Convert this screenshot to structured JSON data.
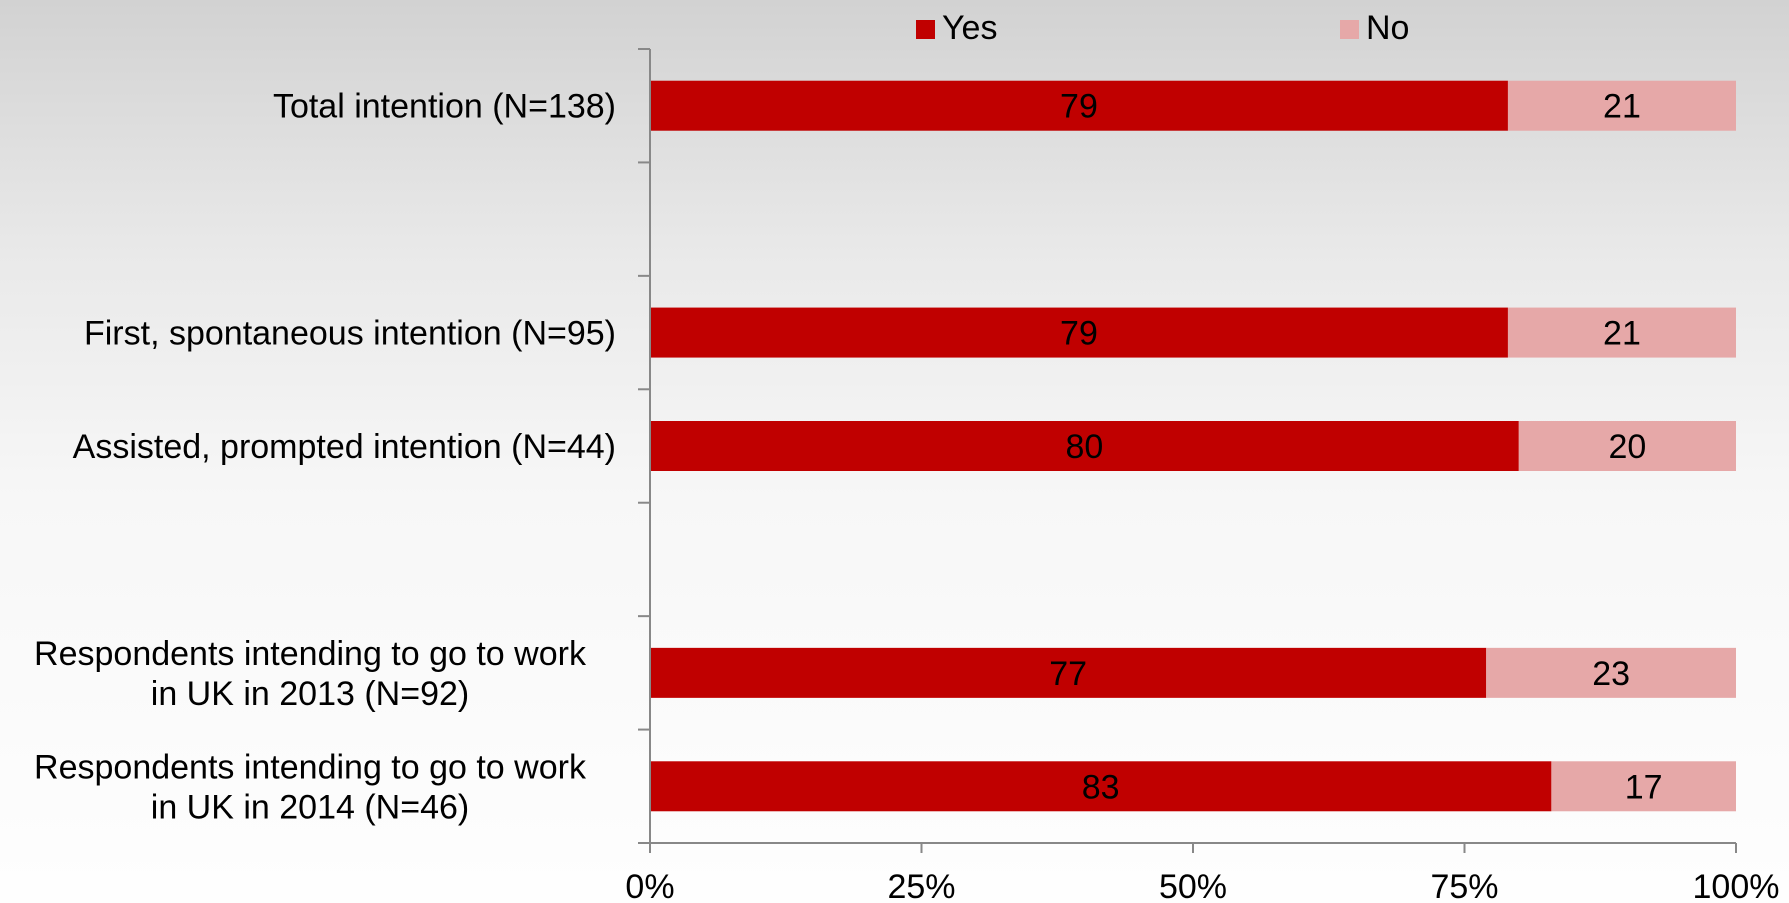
{
  "chart_data": {
    "type": "bar",
    "orientation": "horizontal",
    "stacked": true,
    "categories": [
      [
        "Total intention (N=138)"
      ],
      [],
      [
        "First, spontaneous intention (N=95)"
      ],
      [
        "Assisted, prompted intention (N=44)"
      ],
      [],
      [
        "Respondents intending to go to work",
        "in UK in 2013 (N=92)"
      ],
      [
        "Respondents intending to go to work",
        "in UK in 2014 (N=46)"
      ]
    ],
    "series": [
      {
        "name": "Yes",
        "color": "#c00000",
        "values": [
          79,
          null,
          79,
          80,
          null,
          77,
          83
        ]
      },
      {
        "name": "No",
        "color": "#e6a8a8",
        "values": [
          21,
          null,
          21,
          20,
          null,
          23,
          17
        ]
      }
    ],
    "xlim": [
      0,
      100
    ],
    "xticks": [
      "0%",
      "25%",
      "50%",
      "75%",
      "100%"
    ],
    "legend_position": "top",
    "grid": false
  }
}
